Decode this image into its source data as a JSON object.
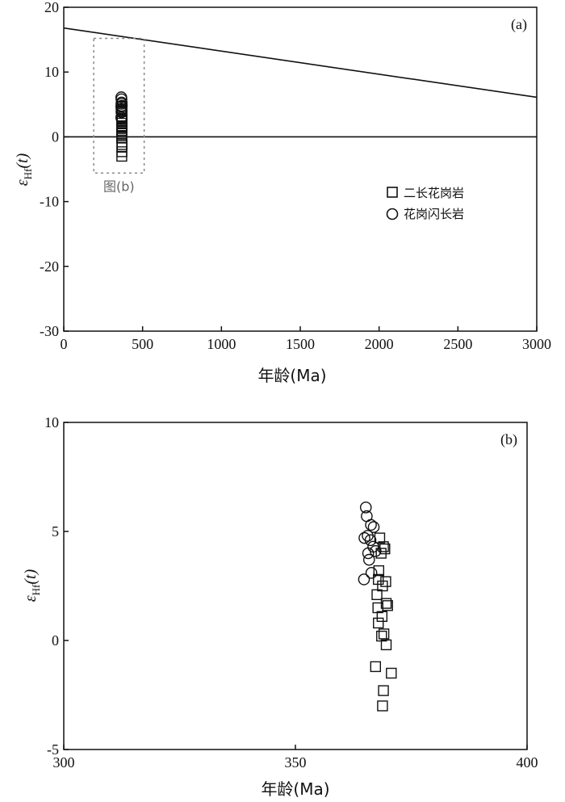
{
  "chart_data": [
    {
      "panel": "(a)",
      "type": "scatter",
      "xlabel": "年龄(Ma)",
      "ylabel_main": "ε",
      "ylabel_sub": "Hf",
      "ylabel_tail": "(t)",
      "xlim": [
        0,
        3000
      ],
      "ylim": [
        -30,
        20
      ],
      "xticks": [
        0,
        500,
        1000,
        1500,
        2000,
        2500,
        3000
      ],
      "yticks": [
        20,
        10,
        0,
        -10,
        -20,
        -30
      ],
      "reference_lines": [
        {
          "x": [
            0,
            3000
          ],
          "y": [
            16.8,
            6.1
          ]
        },
        {
          "x": [
            0,
            3000
          ],
          "y": [
            0,
            0
          ]
        }
      ],
      "inset_box": {
        "x": [
          190,
          510
        ],
        "y": [
          -5.6,
          15.2
        ],
        "label": "图(b)"
      },
      "legend": [
        {
          "marker": "square",
          "label": "二长花岗岩"
        },
        {
          "marker": "circle",
          "label": "花岗闪长岩"
        }
      ],
      "series": [
        {
          "marker": "square",
          "x": [
            368,
            369,
            367,
            368,
            369,
            370,
            369,
            368,
            367,
            369,
            368,
            370,
            367,
            369,
            368,
            369,
            367,
            370,
            368,
            369,
            368
          ],
          "y": [
            4.7,
            4.3,
            4.1,
            3.9,
            3.2,
            2.7,
            2.4,
            2.1,
            1.7,
            1.5,
            1.3,
            1.6,
            1.0,
            0.8,
            0.5,
            0.2,
            -0.2,
            -1.2,
            -1.6,
            -2.3,
            -3.0
          ]
        },
        {
          "marker": "circle",
          "x": [
            365,
            366,
            367,
            366,
            368,
            365,
            366,
            367,
            366,
            365,
            367
          ],
          "y": [
            6.1,
            5.8,
            5.3,
            5.1,
            4.8,
            4.7,
            4.3,
            4.0,
            3.8,
            3.0,
            2.8
          ]
        }
      ]
    },
    {
      "panel": "(b)",
      "type": "scatter",
      "xlabel": "年龄(Ma)",
      "ylabel_main": "ε",
      "ylabel_sub": "Hf",
      "ylabel_tail": "(t)",
      "xlim": [
        300,
        400
      ],
      "ylim": [
        -5,
        10
      ],
      "xticks": [
        300,
        350,
        400
      ],
      "yticks": [
        10,
        5,
        0,
        -5
      ],
      "series": [
        {
          "marker": "square",
          "x": [
            368.2,
            369.0,
            368.5,
            369.3,
            368.0,
            369.5,
            367.9,
            368.8,
            369.6,
            367.6,
            369.9,
            367.8,
            368.7,
            367.9,
            369.1,
            368.6,
            369.6,
            367.3,
            370.7,
            369.0,
            368.8
          ],
          "y": [
            4.7,
            4.3,
            4.0,
            4.2,
            3.2,
            2.7,
            2.8,
            2.5,
            1.7,
            2.1,
            1.6,
            1.5,
            1.1,
            0.8,
            0.3,
            0.2,
            -0.2,
            -1.2,
            -1.5,
            -2.3,
            -3.0
          ]
        },
        {
          "marker": "circle",
          "x": [
            365.2,
            365.4,
            366.3,
            366.9,
            365.6,
            364.9,
            366.2,
            366.8,
            365.7,
            367.3,
            364.8,
            365.9,
            366.4
          ],
          "y": [
            6.1,
            5.7,
            5.3,
            5.2,
            4.8,
            4.7,
            4.6,
            4.3,
            4.0,
            4.1,
            2.8,
            3.7,
            3.1
          ]
        }
      ]
    }
  ]
}
